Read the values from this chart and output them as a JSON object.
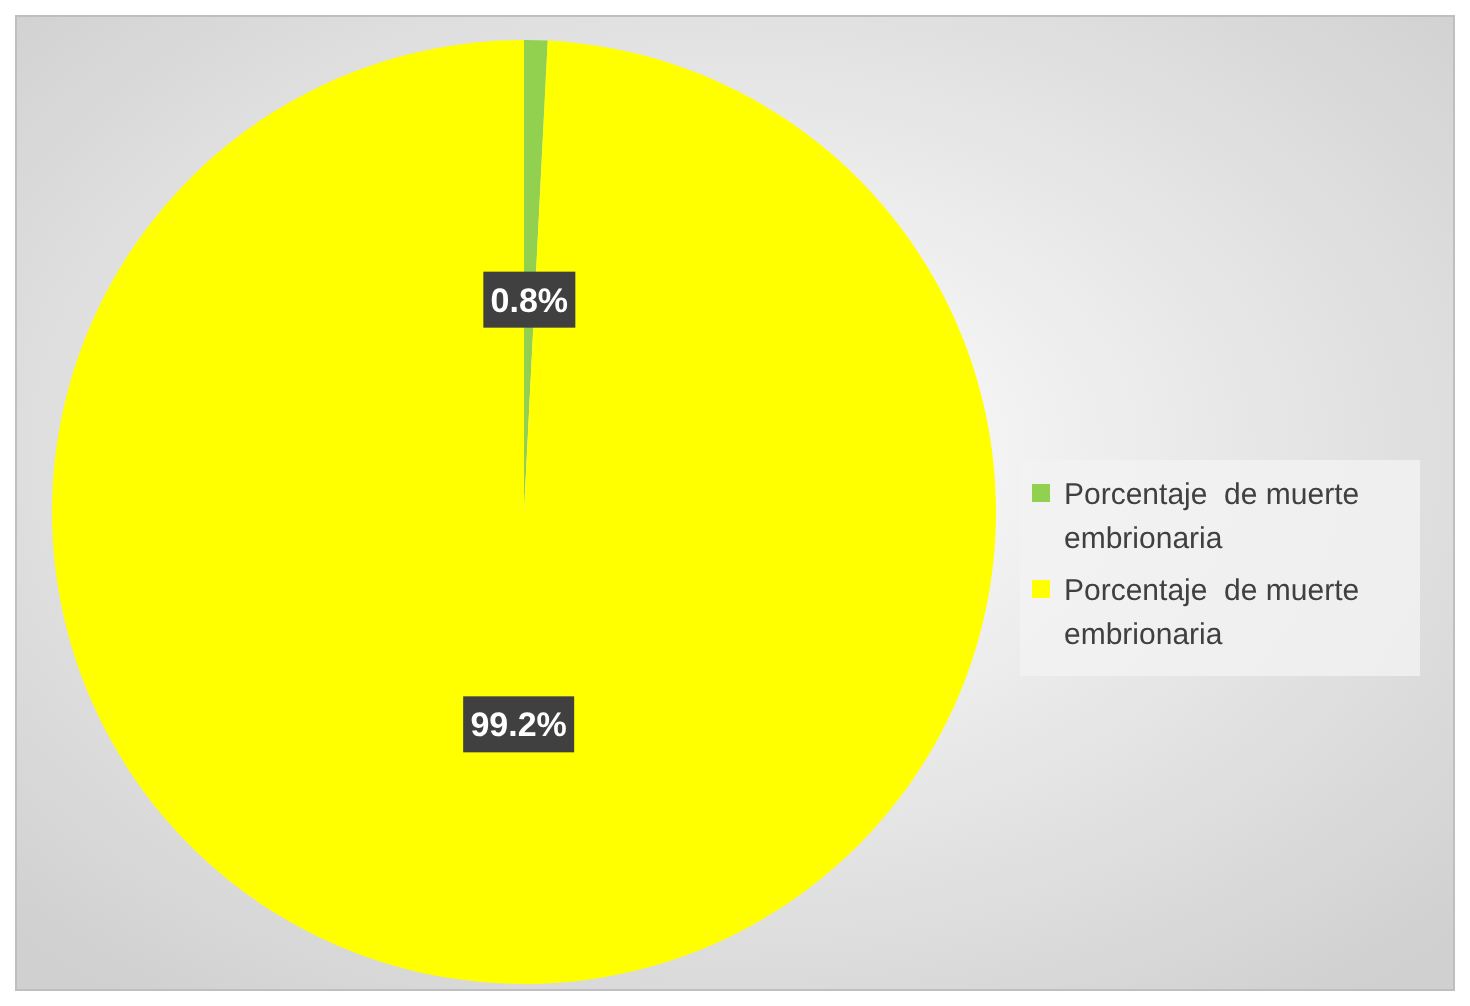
{
  "chart_data": {
    "type": "pie",
    "categories": [
      "Porcentaje  de muerte embrionaria",
      "Porcentaje  de muerte embrionaria"
    ],
    "values": [
      0.8,
      99.2
    ],
    "colors": [
      "#92d050",
      "#ffff00"
    ],
    "value_labels": [
      "0.8%",
      "99.2%"
    ],
    "legend": "right"
  }
}
